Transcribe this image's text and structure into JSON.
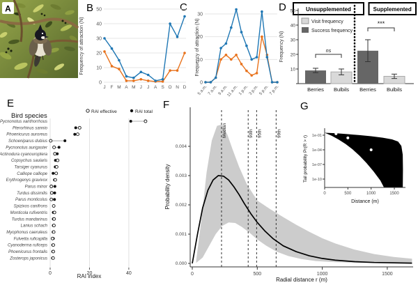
{
  "figure": {
    "panels": {
      "a": "A",
      "b": "B",
      "c": "C",
      "d": "D",
      "e": "E",
      "f": "F",
      "g": "G"
    }
  },
  "colors": {
    "blue": "#1f77b4",
    "orange": "#e8721c",
    "bar_dark": "#666666",
    "bar_light": "#d9d9d9",
    "ribbon": "#cccccc",
    "grid": "#e4e4e4"
  },
  "chart_data": [
    {
      "panel": "B",
      "type": "line",
      "ylabel": "Frequency of attraction (N)",
      "categories": [
        "J",
        "F",
        "M",
        "A",
        "M",
        "J",
        "J",
        "A",
        "S",
        "O",
        "N",
        "D"
      ],
      "ylim": [
        0,
        50
      ],
      "yticks": [
        0,
        10,
        20,
        30,
        40,
        50
      ],
      "grid": true,
      "legend_position": "none",
      "series": [
        {
          "name": "blue",
          "color": "blue",
          "values": [
            30,
            23,
            15,
            4,
            3,
            7,
            5,
            1,
            2,
            40,
            31,
            45
          ]
        },
        {
          "name": "orange",
          "color": "orange",
          "values": [
            21,
            11,
            9,
            1,
            1,
            2,
            1,
            0.5,
            0.5,
            8,
            8,
            20
          ]
        }
      ]
    },
    {
      "panel": "C",
      "type": "line",
      "ylabel": "Frequency of attraction (N)",
      "x_tick_labels": [
        "5 a.m.",
        "7 a.m.",
        "9 a.m.",
        "11 a.m.",
        "1 p.m.",
        "3 p.m.",
        "5 p.m.",
        "7 p.m."
      ],
      "x_tick_indices": [
        0,
        2,
        4,
        6,
        8,
        10,
        12,
        14
      ],
      "x_count": 15,
      "ylim": [
        0,
        33
      ],
      "yticks": [
        0,
        10,
        20,
        30
      ],
      "grid": true,
      "legend_position": "none",
      "series": [
        {
          "name": "blue",
          "color": "blue",
          "values": [
            0,
            0,
            2,
            15,
            17,
            24,
            32,
            22,
            16,
            10,
            11,
            31,
            11,
            0,
            0
          ]
        },
        {
          "name": "orange",
          "color": "orange",
          "values": [
            0,
            0,
            2,
            10,
            12,
            10,
            12,
            8,
            5,
            3,
            4,
            20,
            12,
            0,
            0
          ]
        }
      ]
    },
    {
      "panel": "D",
      "type": "bar",
      "ylabel": "Frequency (N)",
      "ylim": [
        0,
        50
      ],
      "yticks": [
        0,
        10,
        20,
        30,
        40,
        50
      ],
      "group_headers": [
        "Unsupplemented",
        "Supplemented"
      ],
      "legend": [
        {
          "label": "Visit frequency",
          "style": "light"
        },
        {
          "label": "Success frequency",
          "style": "dark"
        }
      ],
      "bars": [
        {
          "group": "Unsupplemented",
          "label": "Berries",
          "value": 9,
          "error": 1.5,
          "style": "dark"
        },
        {
          "group": "Unsupplemented",
          "label": "Bulbils",
          "value": 8,
          "error": 2,
          "style": "light"
        },
        {
          "group": "Supplemented",
          "label": "Berries",
          "value": 22.5,
          "error": 7.5,
          "style": "dark"
        },
        {
          "group": "Supplemented",
          "label": "Bulbils",
          "value": 5,
          "error": 1.5,
          "style": "light"
        }
      ],
      "significance": [
        {
          "pair": "Unsupplemented",
          "label": "ns"
        },
        {
          "pair": "Supplemented",
          "label": "***"
        }
      ]
    },
    {
      "panel": "E",
      "type": "dot",
      "title": "Bird species",
      "xlabel": "RAI index",
      "xticks": [
        0,
        20,
        40
      ],
      "legend": [
        {
          "marker": "open",
          "label": "RAI effective"
        },
        {
          "marker": "filled",
          "label": "RAI total"
        }
      ],
      "rows": [
        {
          "species": "Pycnonotus xanthorrhous",
          "effective": 48.5,
          "total": 41
        },
        {
          "species": "Pterorhinus sannio",
          "effective": 15,
          "total": 13
        },
        {
          "species": "Phoenicurus auroreus",
          "effective": 14,
          "total": 12.5
        },
        {
          "species": "Schoeniparus dubius",
          "effective": 0.3,
          "total": 7.5
        },
        {
          "species": "Pycnonotus aurigaster",
          "effective": 2,
          "total": 4.5
        },
        {
          "species": "Actinodura cyanouroptera",
          "effective": 2.4,
          "total": 3.6
        },
        {
          "species": "Copsychus saularis",
          "effective": 3.8,
          "total": 2.7
        },
        {
          "species": "Tarsiger cyanurus",
          "effective": 3.3,
          "total": 2.6
        },
        {
          "species": "Calliope calliope",
          "effective": 3.1,
          "total": 1.5
        },
        {
          "species": "Erythrogenys gravivox",
          "effective": 2.6,
          "total": 2.2
        },
        {
          "species": "Parus minor",
          "effective": 0.6,
          "total": 2.4
        },
        {
          "species": "Turdus dissimilis",
          "effective": 0.8,
          "total": 2.3
        },
        {
          "species": "Parus monticolus",
          "effective": 0.6,
          "total": 2.2
        },
        {
          "species": "Spizixos canifrons",
          "effective": 1.8,
          "total": 1.8
        },
        {
          "species": "Monticola rufiventris",
          "effective": 2.2,
          "total": 1.6
        },
        {
          "species": "Turdus mandarinus",
          "effective": 2.0,
          "total": 1.6
        },
        {
          "species": "Lanius schach",
          "effective": 1.9,
          "total": 1.6
        },
        {
          "species": "Myophonus caeruleus",
          "effective": 1.8,
          "total": 1.5
        },
        {
          "species": "Fulvetta ruficapilla",
          "effective": 1.2,
          "total": 1.6
        },
        {
          "species": "Cyanoderma ruficeps",
          "effective": 1.6,
          "total": 1.3
        },
        {
          "species": "Phoenicurus frontalis",
          "effective": 1.6,
          "total": 1.3
        },
        {
          "species": "Zosterops japonicus",
          "effective": 1.5,
          "total": 1.2
        }
      ]
    },
    {
      "panel": "F",
      "type": "area",
      "ylabel": "Probability density",
      "xlabel": "Radial distance  r  (m)",
      "xticks": [
        0,
        500,
        1000,
        1500
      ],
      "yticks": [
        0,
        0.001,
        0.002,
        0.003,
        0.004
      ],
      "ytick_labels": [
        "0.000",
        "0.001",
        "0.002",
        "0.003",
        "0.004"
      ],
      "xlim": [
        0,
        1690
      ],
      "quantile_lines": [
        {
          "label": "Median",
          "x": 225
        },
        {
          "label": "90th",
          "x": 430
        },
        {
          "label": "95th",
          "x": 495
        },
        {
          "label": "99th",
          "x": 645
        }
      ],
      "curve": [
        [
          0,
          0
        ],
        [
          40,
          0.001
        ],
        [
          80,
          0.0019
        ],
        [
          120,
          0.0025
        ],
        [
          160,
          0.00285
        ],
        [
          200,
          0.003
        ],
        [
          240,
          0.00298
        ],
        [
          280,
          0.00285
        ],
        [
          320,
          0.00262
        ],
        [
          360,
          0.00235
        ],
        [
          400,
          0.00205
        ],
        [
          450,
          0.0017
        ],
        [
          500,
          0.0014
        ],
        [
          560,
          0.0011
        ],
        [
          620,
          0.00085
        ],
        [
          700,
          0.0006
        ],
        [
          800,
          0.0004
        ],
        [
          900,
          0.00026
        ],
        [
          1000,
          0.00017
        ],
        [
          1100,
          0.00011
        ],
        [
          1250,
          6e-05
        ],
        [
          1400,
          3e-05
        ],
        [
          1690,
          1e-05
        ]
      ],
      "band_upper": [
        [
          30,
          0.0001
        ],
        [
          70,
          0.0015
        ],
        [
          110,
          0.0031
        ],
        [
          150,
          0.0042
        ],
        [
          190,
          0.0047
        ],
        [
          230,
          0.00475
        ],
        [
          270,
          0.0044
        ],
        [
          310,
          0.0039
        ],
        [
          360,
          0.0033
        ],
        [
          420,
          0.0027
        ],
        [
          500,
          0.00215
        ],
        [
          600,
          0.00185
        ],
        [
          700,
          0.00158
        ],
        [
          800,
          0.00132
        ],
        [
          900,
          0.00108
        ],
        [
          1000,
          0.00086
        ],
        [
          1100,
          0.00068
        ],
        [
          1250,
          0.00047
        ],
        [
          1400,
          0.00032
        ],
        [
          1550,
          0.00022
        ],
        [
          1690,
          0.00016
        ]
      ],
      "band_lower": [
        [
          30,
          2e-05
        ],
        [
          80,
          0.0002
        ],
        [
          130,
          0.0006
        ],
        [
          180,
          0.001
        ],
        [
          230,
          0.00128
        ],
        [
          280,
          0.0014
        ],
        [
          330,
          0.00138
        ],
        [
          380,
          0.00125
        ],
        [
          440,
          0.00105
        ],
        [
          500,
          0.00082
        ],
        [
          570,
          0.0006
        ],
        [
          650,
          0.0004
        ],
        [
          740,
          0.00025
        ],
        [
          840,
          0.00015
        ],
        [
          950,
          8e-05
        ],
        [
          1100,
          4e-05
        ],
        [
          1300,
          2e-05
        ],
        [
          1690,
          1e-05
        ]
      ]
    },
    {
      "panel": "G",
      "type": "area-scatter",
      "ylabel": "Tail probability  Pr(R > r)",
      "xlabel": "Distance (m)",
      "xticks": [
        0,
        500,
        1000,
        1500
      ],
      "ytick_labels": [
        "1e-01",
        "1e-04",
        "1e-07",
        "1e-10"
      ],
      "ytick_logs": [
        -1,
        -4,
        -7,
        -10
      ],
      "points": [
        {
          "x": 245,
          "log_p": -0.7
        },
        {
          "x": 500,
          "log_p": -1.55
        },
        {
          "x": 1000,
          "log_p": -4.0
        }
      ],
      "region_upper": [
        [
          0,
          -0.5
        ],
        [
          250,
          -0.62
        ],
        [
          500,
          -0.78
        ],
        [
          750,
          -0.98
        ],
        [
          1000,
          -1.22
        ],
        [
          1250,
          -1.52
        ],
        [
          1450,
          -1.85
        ],
        [
          1580,
          -2.3
        ],
        [
          1650,
          -3.2
        ],
        [
          1680,
          -5
        ],
        [
          1685,
          -8
        ],
        [
          1680,
          -12.5
        ]
      ],
      "region_lower": [
        [
          0,
          -0.5
        ],
        [
          150,
          -1.1
        ],
        [
          300,
          -1.9
        ],
        [
          450,
          -2.8
        ],
        [
          600,
          -3.9
        ],
        [
          750,
          -5.2
        ],
        [
          900,
          -6.7
        ],
        [
          1050,
          -8.4
        ],
        [
          1200,
          -10.3
        ],
        [
          1320,
          -12.5
        ]
      ]
    }
  ]
}
